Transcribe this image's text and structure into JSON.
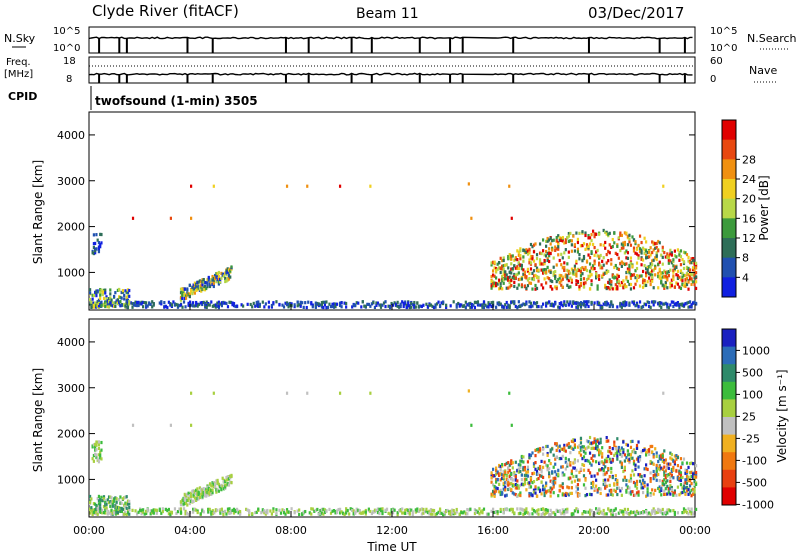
{
  "header": {
    "station": "Clyde River (fitACF)",
    "beam": "Beam 11",
    "date": "03/Dec/2017"
  },
  "top_panels": {
    "nsky_label": "N.Sky",
    "nsky_ticks": [
      "10^5",
      "10^0"
    ],
    "nsearch_label": "N.Search",
    "nsearch_ticks": [
      "10^5",
      "10^0"
    ],
    "freq_label": "Freq.",
    "freq_unit": "[MHz]",
    "freq_ticks": [
      "18",
      "8"
    ],
    "nave_label": "Nave",
    "nave_ticks": [
      "60",
      "0"
    ],
    "cpid_label": "CPID",
    "cpid_value": "twofsound (1-min) 3505"
  },
  "colors": {
    "power_scale": [
      "#1020e0",
      "#2050b0",
      "#2e6e58",
      "#3c9a3c",
      "#b8d848",
      "#f0d020",
      "#f09010",
      "#e84810",
      "#e00000"
    ],
    "velocity_scale": [
      "#1a20c0",
      "#2b6cb8",
      "#2e8a6a",
      "#3cbc3c",
      "#a8d040",
      "#c0c0c0",
      "#f0b020",
      "#f07810",
      "#e84010",
      "#e00000"
    ]
  },
  "chart_data": [
    {
      "type": "heatmap",
      "name": "power-panel",
      "ylabel": "Slant Range [km]",
      "ylim": [
        180,
        4500
      ],
      "yticks": [
        "1000",
        "2000",
        "3000",
        "4000"
      ],
      "xlim": [
        0,
        24
      ],
      "colorbar": {
        "label": "Power [dB]",
        "range": [
          0,
          32
        ],
        "ticks": [
          "4",
          "8",
          "12",
          "16",
          "20",
          "24",
          "28"
        ]
      },
      "regions": [
        {
          "t0": 0.0,
          "t1": 1.6,
          "r0": 180,
          "r1": 600,
          "level": "mixed-low"
        },
        {
          "t0": 0.1,
          "t1": 0.4,
          "r0": 1350,
          "r1": 1800,
          "level": "low"
        },
        {
          "t0": 3.6,
          "t1": 5.6,
          "r0": 300,
          "r1": 850,
          "level": "mixed"
        },
        {
          "t0": 0.0,
          "t1": 24.0,
          "r0": 180,
          "r1": 300,
          "level": "low"
        },
        {
          "t0": 16.0,
          "t1": 24.0,
          "r0": 600,
          "r1": 2100,
          "level": "high"
        }
      ]
    },
    {
      "type": "heatmap",
      "name": "velocity-panel",
      "ylabel": "Slant Range [km]",
      "ylim": [
        180,
        4500
      ],
      "yticks": [
        "1000",
        "2000",
        "3000",
        "4000"
      ],
      "xlim": [
        0,
        24
      ],
      "xticks": [
        "00:00",
        "04:00",
        "08:00",
        "12:00",
        "16:00",
        "20:00",
        "00:00"
      ],
      "xlabel": "Time UT",
      "colorbar": {
        "label": "Velocity [m s⁻¹]",
        "ticks": [
          "1000",
          "500",
          "100",
          "25",
          "-25",
          "-100",
          "-500",
          "-1000"
        ]
      }
    }
  ]
}
